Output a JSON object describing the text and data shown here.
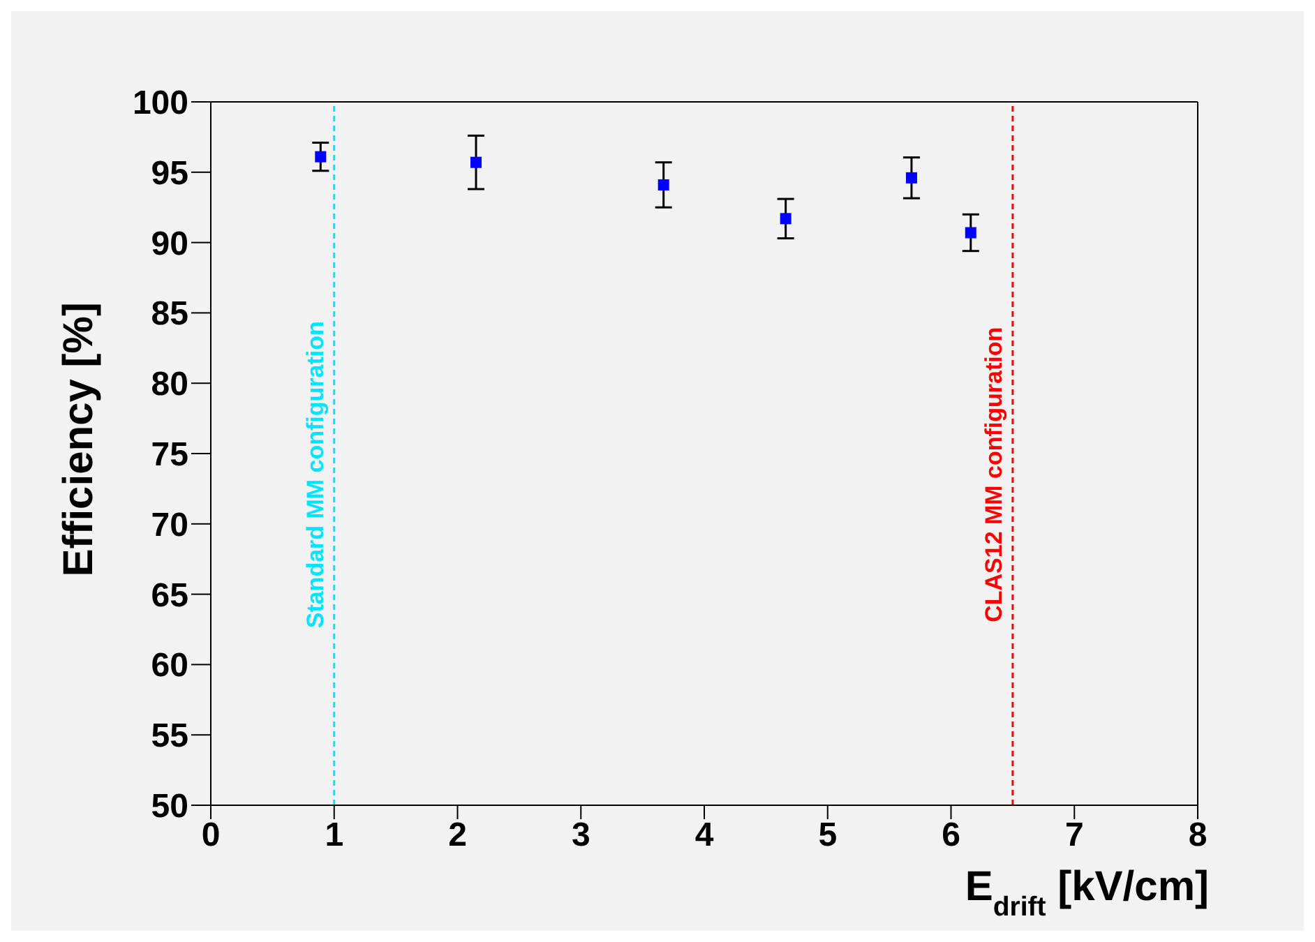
{
  "chart_data": {
    "type": "scatter",
    "xlabel": "E$_{drift}$ [kV/cm]",
    "ylabel": "Efficiency [%]",
    "x": [
      0.89,
      2.15,
      3.67,
      4.66,
      5.68,
      6.16
    ],
    "series": [
      {
        "color": "#0000ff",
        "values": [
          96.1,
          95.7,
          94.1,
          91.7,
          94.6,
          90.7
        ],
        "errors": [
          1.0,
          1.9,
          1.6,
          1.4,
          1.45,
          1.3
        ]
      }
    ],
    "marker": "square",
    "grid": false,
    "legend": false,
    "xlim": [
      0,
      8
    ],
    "xticks": [
      0,
      1,
      2,
      3,
      4,
      5,
      6,
      7,
      8
    ],
    "ylim": [
      50,
      100
    ],
    "yticks": [
      50,
      55,
      60,
      65,
      70,
      75,
      80,
      85,
      90,
      95,
      100
    ],
    "ref_lines": [
      {
        "axis": "x",
        "value": 1,
        "label": "Standard MM configuration",
        "color": "#00e5ff",
        "line_style": "dashed"
      },
      {
        "axis": "x",
        "value": 6.5,
        "label": "CLAS12 MM configuration",
        "color": "#ff0000",
        "line_style": "dashed"
      }
    ]
  }
}
